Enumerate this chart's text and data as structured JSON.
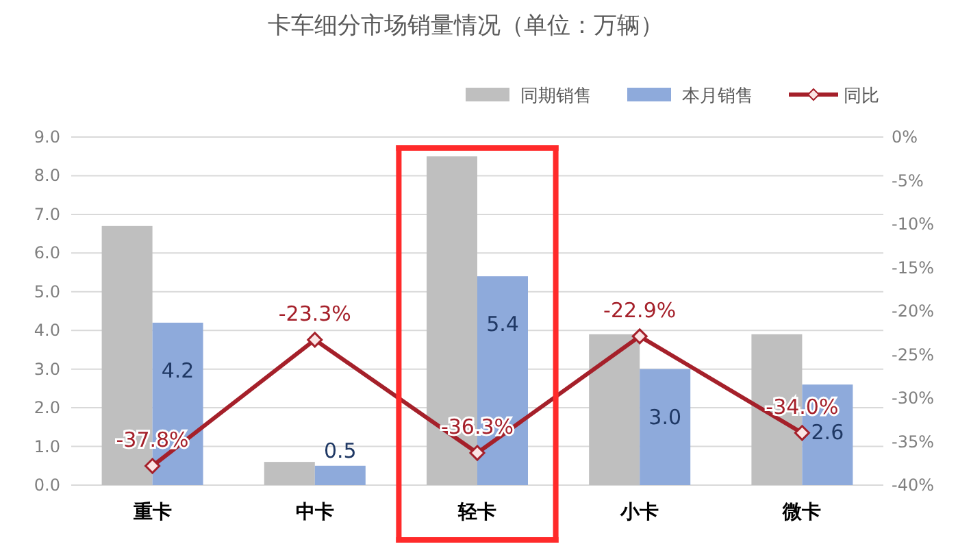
{
  "chart_data": {
    "type": "bar",
    "title": "卡车细分市场销量情况（单位：万辆）",
    "categories": [
      "重卡",
      "中卡",
      "轻卡",
      "小卡",
      "微卡"
    ],
    "series": [
      {
        "name": "同期销售",
        "color": "#bfbfbf",
        "values": [
          6.7,
          0.6,
          8.5,
          3.9,
          3.9
        ]
      },
      {
        "name": "本月销售",
        "color": "#8eaadb",
        "values": [
          4.2,
          0.5,
          5.4,
          3.0,
          2.6
        ],
        "value_labels": [
          "4.2",
          "0.5",
          "5.4",
          "3.0",
          "2.6"
        ]
      },
      {
        "name": "同比",
        "type": "line",
        "axis": "y2",
        "color": "#a5202a",
        "marker": "diamond",
        "values": [
          -37.8,
          -23.3,
          -36.3,
          -22.9,
          -34.0
        ],
        "value_labels": [
          "-37.8%",
          "-23.3%",
          "-36.3%",
          "-22.9%",
          "-34.0%"
        ]
      }
    ],
    "ylim": [
      0,
      9
    ],
    "yticks": [
      {
        "value": 0,
        "label": "0.0"
      },
      {
        "value": 1,
        "label": "1.0"
      },
      {
        "value": 2,
        "label": "2.0"
      },
      {
        "value": 3,
        "label": "3.0"
      },
      {
        "value": 4,
        "label": "4.0"
      },
      {
        "value": 5,
        "label": "5.0"
      },
      {
        "value": 6,
        "label": "6.0"
      },
      {
        "value": 7,
        "label": "7.0"
      },
      {
        "value": 8,
        "label": "8.0"
      },
      {
        "value": 9,
        "label": "9.0"
      }
    ],
    "y2lim": [
      -40,
      0
    ],
    "y2ticks": [
      {
        "value": 0,
        "label": "0%"
      },
      {
        "value": -5,
        "label": "-5%"
      },
      {
        "value": -10,
        "label": "-10%"
      },
      {
        "value": -15,
        "label": "-15%"
      },
      {
        "value": -20,
        "label": "-20%"
      },
      {
        "value": -25,
        "label": "-25%"
      },
      {
        "value": -30,
        "label": "-30%"
      },
      {
        "value": -35,
        "label": "-35%"
      },
      {
        "value": -40,
        "label": "-40%"
      }
    ],
    "grid": "y",
    "legend": "top right"
  }
}
